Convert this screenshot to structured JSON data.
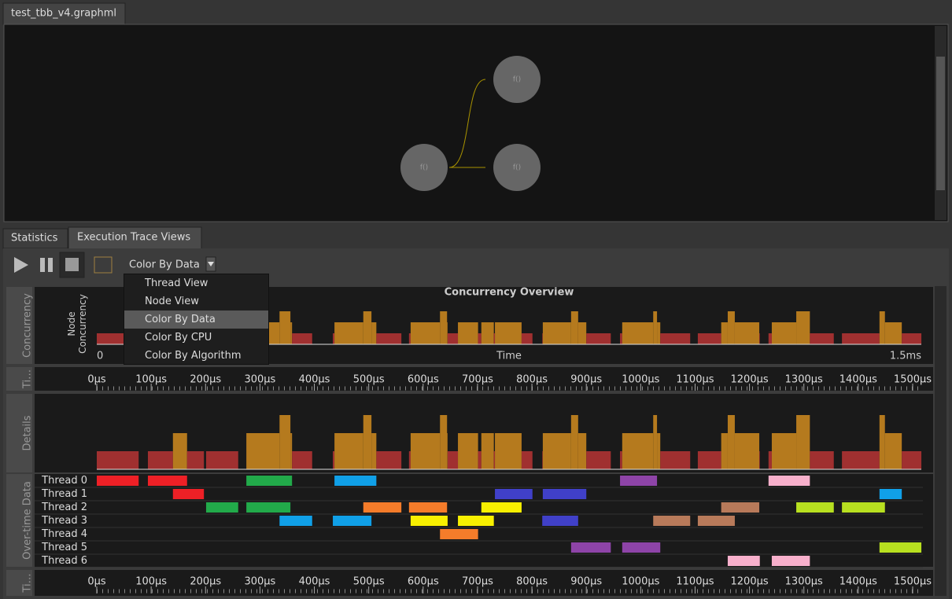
{
  "file_tab": "test_tbb_v4.graphml",
  "graph": {
    "nodes": [
      {
        "label": "f()"
      },
      {
        "label": "f()"
      },
      {
        "label": "f()"
      }
    ]
  },
  "tabs": [
    "Statistics",
    "Execution Trace Views"
  ],
  "toolbar": {
    "color_mode": "Color By Data"
  },
  "menu": {
    "items": [
      "Thread View",
      "Node View",
      "Color By Data",
      "Color By CPU",
      "Color By Algorithm"
    ],
    "selected": 2
  },
  "side_labels": {
    "concurrency": "Concurrency",
    "timeline": "Ti…",
    "details": "Details",
    "overtime": "Over-time Data",
    "timeline2": "Ti…"
  },
  "chart_data": {
    "type": "timeline",
    "title": "Concurrency Overview",
    "y_label": "Node Concurrency",
    "x_label": "Time",
    "overview_start": "0",
    "overview_end": "1.5ms",
    "xlim": [
      0,
      1500
    ],
    "xticks": [
      {
        "value": 0,
        "label": "0µs"
      },
      {
        "value": 100,
        "label": "100µs"
      },
      {
        "value": 200,
        "label": "200µs"
      },
      {
        "value": 300,
        "label": "300µs"
      },
      {
        "value": 400,
        "label": "400µs"
      },
      {
        "value": 500,
        "label": "500µs"
      },
      {
        "value": 600,
        "label": "600µs"
      },
      {
        "value": 700,
        "label": "700µs"
      },
      {
        "value": 800,
        "label": "800µs"
      },
      {
        "value": 900,
        "label": "900µs"
      },
      {
        "value": 1000,
        "label": "1000µs"
      },
      {
        "value": 1100,
        "label": "1100µs"
      },
      {
        "value": 1200,
        "label": "1200µs"
      },
      {
        "value": 1300,
        "label": "1300µs"
      },
      {
        "value": 1400,
        "label": "1400µs"
      },
      {
        "value": 1500,
        "label": "1500µs"
      }
    ],
    "threads": [
      {
        "name": "Thread 0",
        "bars": [
          {
            "start": 0,
            "end": 77,
            "color": "#ee2026"
          },
          {
            "start": 94,
            "end": 166,
            "color": "#ee2026"
          },
          {
            "start": 275,
            "end": 359,
            "color": "#22aa4a"
          },
          {
            "start": 437,
            "end": 514,
            "color": "#10a0e8"
          },
          {
            "start": 962,
            "end": 1030,
            "color": "#8e44a8"
          },
          {
            "start": 1235,
            "end": 1311,
            "color": "#f8b0cc"
          }
        ]
      },
      {
        "name": "Thread 1",
        "bars": [
          {
            "start": 140,
            "end": 197,
            "color": "#ee2026"
          },
          {
            "start": 732,
            "end": 801,
            "color": "#4040c8"
          },
          {
            "start": 820,
            "end": 900,
            "color": "#4040c8"
          },
          {
            "start": 1439,
            "end": 1480,
            "color": "#10a0e8"
          }
        ]
      },
      {
        "name": "Thread 2",
        "bars": [
          {
            "start": 201,
            "end": 260,
            "color": "#22aa4a"
          },
          {
            "start": 275,
            "end": 356,
            "color": "#22aa4a"
          },
          {
            "start": 490,
            "end": 560,
            "color": "#f57c2a"
          },
          {
            "start": 574,
            "end": 644,
            "color": "#f57c2a"
          },
          {
            "start": 707,
            "end": 781,
            "color": "#f8f000"
          },
          {
            "start": 1148,
            "end": 1218,
            "color": "#b87a5a"
          },
          {
            "start": 1286,
            "end": 1355,
            "color": "#b8e020"
          },
          {
            "start": 1370,
            "end": 1449,
            "color": "#b8e020"
          }
        ]
      },
      {
        "name": "Thread 3",
        "bars": [
          {
            "start": 336,
            "end": 396,
            "color": "#10a0e8"
          },
          {
            "start": 434,
            "end": 505,
            "color": "#10a0e8"
          },
          {
            "start": 577,
            "end": 645,
            "color": "#f8f000"
          },
          {
            "start": 664,
            "end": 730,
            "color": "#f8f000"
          },
          {
            "start": 819,
            "end": 885,
            "color": "#4040c8"
          },
          {
            "start": 1023,
            "end": 1091,
            "color": "#b87a5a"
          },
          {
            "start": 1105,
            "end": 1173,
            "color": "#b87a5a"
          }
        ]
      },
      {
        "name": "Thread 4",
        "bars": [
          {
            "start": 631,
            "end": 701,
            "color": "#f57c2a"
          }
        ]
      },
      {
        "name": "Thread 5",
        "bars": [
          {
            "start": 872,
            "end": 945,
            "color": "#8e44a8"
          },
          {
            "start": 966,
            "end": 1036,
            "color": "#8e44a8"
          },
          {
            "start": 1439,
            "end": 1516,
            "color": "#b8e020"
          }
        ]
      },
      {
        "name": "Thread 6",
        "bars": [
          {
            "start": 1160,
            "end": 1219,
            "color": "#f8b0cc"
          },
          {
            "start": 1241,
            "end": 1311,
            "color": "#f8b0cc"
          }
        ]
      }
    ]
  }
}
